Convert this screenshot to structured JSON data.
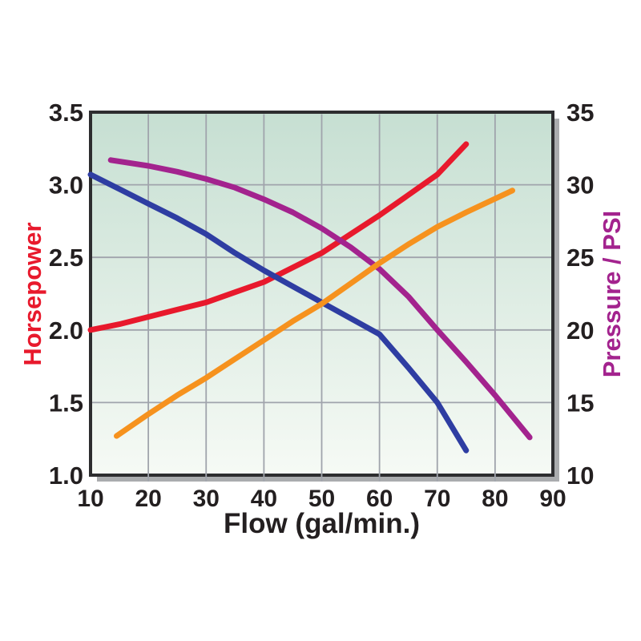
{
  "chart_data": {
    "type": "line",
    "title": "",
    "xlabel": "Flow (gal/min.)",
    "ylabel_left": "Horsepower",
    "ylabel_right": "Pressure / PSI",
    "xlim": [
      10,
      90
    ],
    "ylim_left": [
      1.0,
      3.5
    ],
    "ylim_right": [
      10,
      35
    ],
    "grid": true,
    "x_ticks": [
      10,
      20,
      30,
      40,
      50,
      60,
      70,
      80,
      90
    ],
    "y_left_ticks": [
      "3.5",
      "3.0",
      "2.5",
      "2.0",
      "1.5",
      "1.0"
    ],
    "y_right_ticks": [
      "35",
      "30",
      "25",
      "20",
      "15",
      "10"
    ],
    "series": [
      {
        "name": "horsepower-red",
        "axis": "left",
        "color": "#e8192c",
        "points": [
          [
            10,
            2.0
          ],
          [
            15,
            2.04
          ],
          [
            20,
            2.09
          ],
          [
            25,
            2.14
          ],
          [
            30,
            2.19
          ],
          [
            35,
            2.26
          ],
          [
            40,
            2.33
          ],
          [
            45,
            2.43
          ],
          [
            50,
            2.53
          ],
          [
            55,
            2.66
          ],
          [
            60,
            2.79
          ],
          [
            65,
            2.93
          ],
          [
            70,
            3.07
          ],
          [
            75,
            3.28
          ]
        ]
      },
      {
        "name": "curve-blue",
        "axis": "left",
        "color": "#2e3da2",
        "points": [
          [
            10,
            3.07
          ],
          [
            15,
            2.97
          ],
          [
            20,
            2.87
          ],
          [
            25,
            2.77
          ],
          [
            30,
            2.66
          ],
          [
            35,
            2.53
          ],
          [
            40,
            2.41
          ],
          [
            45,
            2.3
          ],
          [
            50,
            2.19
          ],
          [
            55,
            2.08
          ],
          [
            60,
            1.97
          ],
          [
            65,
            1.74
          ],
          [
            70,
            1.5
          ],
          [
            75,
            1.17
          ]
        ]
      },
      {
        "name": "pressure-purple",
        "axis": "right",
        "color": "#a3238e",
        "points": [
          [
            13.5,
            31.7
          ],
          [
            20,
            31.3
          ],
          [
            25,
            30.9
          ],
          [
            30,
            30.4
          ],
          [
            35,
            29.8
          ],
          [
            40,
            29.0
          ],
          [
            45,
            28.1
          ],
          [
            50,
            27.0
          ],
          [
            55,
            25.7
          ],
          [
            60,
            24.2
          ],
          [
            65,
            22.3
          ],
          [
            70,
            20.0
          ],
          [
            75,
            17.8
          ],
          [
            80,
            15.5
          ],
          [
            86,
            12.6
          ]
        ]
      },
      {
        "name": "curve-orange",
        "axis": "right",
        "color": "#f6921e",
        "points": [
          [
            14.5,
            12.7
          ],
          [
            20,
            14.2
          ],
          [
            25,
            15.5
          ],
          [
            30,
            16.7
          ],
          [
            35,
            18.0
          ],
          [
            40,
            19.3
          ],
          [
            45,
            20.6
          ],
          [
            50,
            21.8
          ],
          [
            55,
            23.2
          ],
          [
            60,
            24.6
          ],
          [
            65,
            25.9
          ],
          [
            70,
            27.1
          ],
          [
            75,
            28.1
          ],
          [
            83,
            29.6
          ]
        ]
      }
    ],
    "colors": {
      "left_axis_label": "#e8192c",
      "right_axis_label": "#a3238e",
      "tick_text": "#231f20",
      "plot_bg_top": "#c6dfd2",
      "plot_bg_bottom": "#f6faf5",
      "gridline": "#a0a4ac",
      "border": "#2d2d2f",
      "shadow": "#aaacae",
      "page_bg": "#ffffff"
    }
  }
}
